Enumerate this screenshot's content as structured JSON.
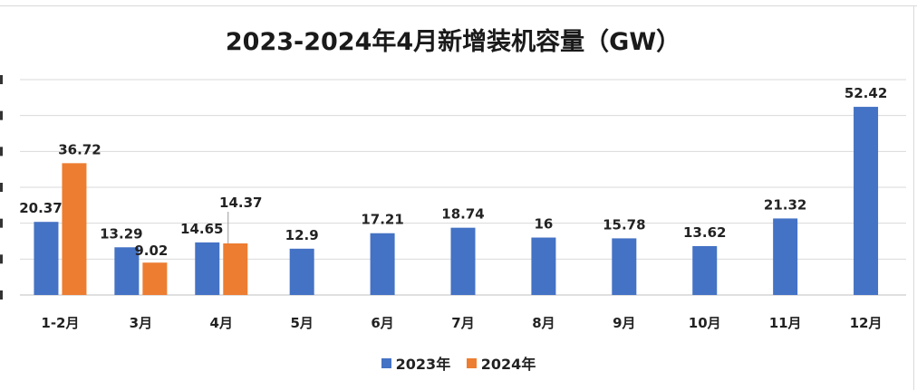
{
  "chart_data": {
    "type": "bar",
    "title": "2023-2024年4月新增装机容量（GW）",
    "categories": [
      "1-2月",
      "3月",
      "4月",
      "5月",
      "6月",
      "7月",
      "8月",
      "9月",
      "10月",
      "11月",
      "12月"
    ],
    "series": [
      {
        "name": "2023年",
        "color": "#4472C4",
        "values": [
          20.37,
          13.29,
          14.65,
          12.9,
          17.21,
          18.74,
          16,
          15.78,
          13.62,
          21.32,
          52.42
        ]
      },
      {
        "name": "2024年",
        "color": "#ED7D31",
        "values": [
          36.72,
          9.02,
          14.37,
          null,
          null,
          null,
          null,
          null,
          null,
          null,
          null
        ]
      }
    ],
    "data_labels": {
      "2023年": [
        "20.37",
        "13.29",
        "14.65",
        "12.9",
        "17.21",
        "18.74",
        "16",
        "15.78",
        "13.62",
        "21.32",
        "52.42"
      ],
      "2024年": [
        "36.72",
        "9.02",
        "14.37",
        "",
        "",
        "",
        "",
        "",
        "",
        "",
        ""
      ]
    },
    "ylim": [
      0,
      60
    ],
    "grid": true,
    "legend": "bottom",
    "xlabel": "",
    "ylabel": ""
  }
}
